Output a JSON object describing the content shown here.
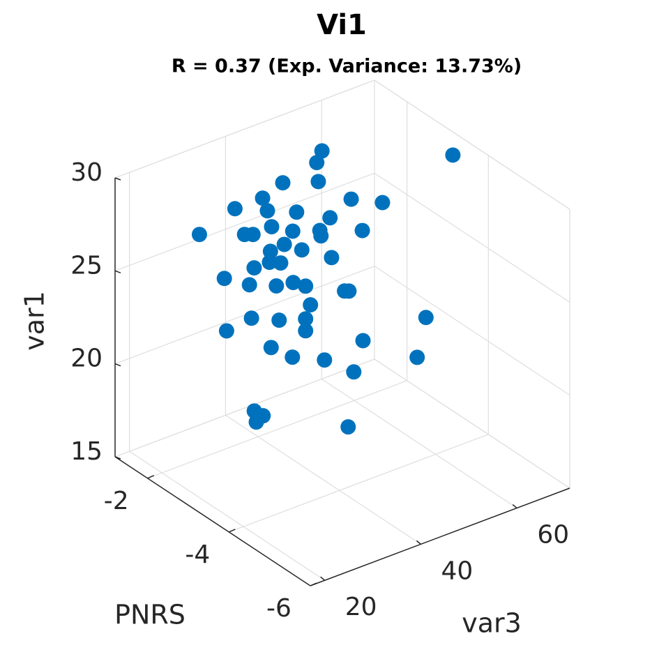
{
  "chart_data": {
    "type": "scatter3",
    "title": "Vi1",
    "subtitle": "R = 0.37 (Exp. Variance: 13.73%)",
    "xlabel": "PNRS",
    "ylabel": "var3",
    "zlabel": "var1",
    "x": [
      -2.13,
      -2.1,
      -3.41,
      -1.95,
      -2.11,
      -1.86,
      -1.74,
      -1.88,
      -2.01,
      -2.26,
      -2.4,
      -2.16,
      -1.9,
      -2.0,
      -2.12,
      -2.31,
      -1.58,
      -1.78,
      -1.82,
      -2.12,
      -1.96,
      -2.04,
      -1.9,
      -2.17,
      -1.89,
      -1.94,
      -1.82,
      -1.69,
      -2.62,
      -2.9,
      -3.08,
      -3.21,
      -3.62,
      -3.67,
      -3.26,
      -2.64,
      -2.93,
      -3.21,
      -4.48,
      -3.21,
      -2.38,
      -3.82,
      -2.85,
      -3.07,
      -3.41,
      -4.39,
      -3.72,
      -2.67,
      -2.76,
      -2.69,
      -3.66
    ],
    "y": [
      52.19,
      51.36,
      68.6,
      45.56,
      51.6,
      42.12,
      37.38,
      42.95,
      47.93,
      57.17,
      62.5,
      53.61,
      43.66,
      47.21,
      51.84,
      59.07,
      31.34,
      39.04,
      40.46,
      52.07,
      45.79,
      48.76,
      43.42,
      53.85,
      43.3,
      45.2,
      40.7,
      35.6,
      32.95,
      36.18,
      38.16,
      39.64,
      44.27,
      44.77,
      40.23,
      33.2,
      36.5,
      39.64,
      53.94,
      39.64,
      30.22,
      46.42,
      35.51,
      38.08,
      41.88,
      52.87,
      45.35,
      33.53,
      34.6,
      33.78,
      44.69
    ],
    "z": [
      29.37,
      28.78,
      29.4,
      28.04,
      27.75,
      27.42,
      27.14,
      26.69,
      26.32,
      26.48,
      25.98,
      25.68,
      25.79,
      25.35,
      25.11,
      24.68,
      26.11,
      25.65,
      25.57,
      24.8,
      24.72,
      24.25,
      24.49,
      23.53,
      23.9,
      23.75,
      23.75,
      23.49,
      24.75,
      24.78,
      25.03,
      24.88,
      24.76,
      24.78,
      23.89,
      22.96,
      22.95,
      23.12,
      23.64,
      22.48,
      22.19,
      22.17,
      21.46,
      21.01,
      20.98,
      21.47,
      20.45,
      17.98,
      17.75,
      17.39,
      17.47
    ],
    "color": "#0072bd",
    "xlim": [
      -6,
      -1.2
    ],
    "ylim": [
      17,
      71
    ],
    "zlim": [
      15,
      30
    ],
    "xticks": [
      -6,
      -4,
      -2
    ],
    "yticks": [
      20,
      40,
      60
    ],
    "zticks": [
      15,
      20,
      25,
      30
    ],
    "grid": true
  }
}
